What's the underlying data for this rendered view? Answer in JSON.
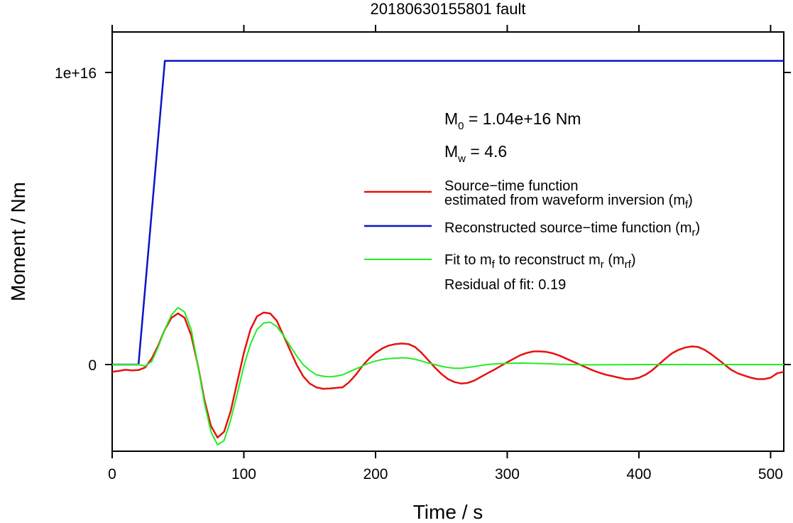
{
  "chart_data": {
    "type": "line",
    "title": "20180630155801 fault",
    "xlabel": "Time / s",
    "ylabel": "Moment / Nm",
    "xlim": [
      0,
      510
    ],
    "ylim": [
      -3000000000000000.0,
      1.2e+16
    ],
    "x_ticks": [
      0,
      100,
      200,
      300,
      400,
      500
    ],
    "x_tick_labels": [
      "0",
      "100",
      "200",
      "300",
      "400",
      "500"
    ],
    "y_ticks": [
      0,
      1e+16
    ],
    "y_tick_labels": [
      "0",
      "1e+16"
    ],
    "grid": false,
    "annotations": {
      "m0_prefix": "M",
      "m0_sub": "0",
      "m0_text": " = 1.04e+16 Nm",
      "mw_prefix": "M",
      "mw_sub": "w",
      "mw_text": " = 4.6",
      "residual": "Residual of fit: 0.19"
    },
    "legend": {
      "position": "right",
      "entries": [
        {
          "line1": "Source−time function",
          "line2": "estimated from waveform inversion (m",
          "sub": "f",
          "tail": ")",
          "color": "#e8110f"
        },
        {
          "text": "Reconstructed source−time function (m",
          "sub": "r",
          "tail": ")",
          "color": "#0a14c8"
        },
        {
          "t1": "Fit to m",
          "s1": "f",
          "t2": " to reconstruct m",
          "s2": "r",
          "t3": " (m",
          "s3": "rf",
          "t4": ")",
          "color": "#22ee22"
        }
      ]
    },
    "series": [
      {
        "key": "red",
        "color": "#e8110f",
        "points": [
          [
            0,
            -250000000000000.0
          ],
          [
            5,
            -220000000000000.0
          ],
          [
            10,
            -180000000000000.0
          ],
          [
            15,
            -200000000000000.0
          ],
          [
            20,
            -190000000000000.0
          ],
          [
            25,
            -100000000000000.0
          ],
          [
            30,
            200000000000000.0
          ],
          [
            35,
            650000000000000.0
          ],
          [
            40,
            1200000000000000.0
          ],
          [
            45,
            1600000000000000.0
          ],
          [
            50,
            1750000000000000.0
          ],
          [
            55,
            1600000000000000.0
          ],
          [
            60,
            1000000000000000.0
          ],
          [
            65,
            0
          ],
          [
            70,
            -1200000000000000.0
          ],
          [
            75,
            -2100000000000000.0
          ],
          [
            80,
            -2500000000000000.0
          ],
          [
            85,
            -2300000000000000.0
          ],
          [
            90,
            -1600000000000000.0
          ],
          [
            95,
            -600000000000000.0
          ],
          [
            100,
            400000000000000.0
          ],
          [
            105,
            1200000000000000.0
          ],
          [
            110,
            1650000000000000.0
          ],
          [
            115,
            1780000000000000.0
          ],
          [
            120,
            1750000000000000.0
          ],
          [
            125,
            1500000000000000.0
          ],
          [
            130,
            1000000000000000.0
          ],
          [
            135,
            500000000000000.0
          ],
          [
            140,
            0
          ],
          [
            145,
            -400000000000000.0
          ],
          [
            150,
            -650000000000000.0
          ],
          [
            155,
            -780000000000000.0
          ],
          [
            160,
            -830000000000000.0
          ],
          [
            165,
            -820000000000000.0
          ],
          [
            170,
            -800000000000000.0
          ],
          [
            175,
            -780000000000000.0
          ],
          [
            180,
            -600000000000000.0
          ],
          [
            185,
            -350000000000000.0
          ],
          [
            190,
            -50000000000000.0
          ],
          [
            195,
            200000000000000.0
          ],
          [
            200,
            400000000000000.0
          ],
          [
            205,
            550000000000000.0
          ],
          [
            210,
            650000000000000.0
          ],
          [
            215,
            700000000000000.0
          ],
          [
            220,
            720000000000000.0
          ],
          [
            225,
            700000000000000.0
          ],
          [
            230,
            600000000000000.0
          ],
          [
            235,
            400000000000000.0
          ],
          [
            240,
            150000000000000.0
          ],
          [
            245,
            -100000000000000.0
          ],
          [
            250,
            -320000000000000.0
          ],
          [
            255,
            -500000000000000.0
          ],
          [
            260,
            -600000000000000.0
          ],
          [
            265,
            -650000000000000.0
          ],
          [
            270,
            -630000000000000.0
          ],
          [
            275,
            -550000000000000.0
          ],
          [
            280,
            -420000000000000.0
          ],
          [
            285,
            -300000000000000.0
          ],
          [
            290,
            -180000000000000.0
          ],
          [
            295,
            -50000000000000.0
          ],
          [
            300,
            80000000000000.0
          ],
          [
            305,
            200000000000000.0
          ],
          [
            310,
            320000000000000.0
          ],
          [
            315,
            400000000000000.0
          ],
          [
            320,
            450000000000000.0
          ],
          [
            325,
            450000000000000.0
          ],
          [
            330,
            430000000000000.0
          ],
          [
            335,
            380000000000000.0
          ],
          [
            340,
            300000000000000.0
          ],
          [
            345,
            200000000000000.0
          ],
          [
            350,
            100000000000000.0
          ],
          [
            355,
            0
          ],
          [
            360,
            -100000000000000.0
          ],
          [
            365,
            -200000000000000.0
          ],
          [
            370,
            -280000000000000.0
          ],
          [
            375,
            -350000000000000.0
          ],
          [
            380,
            -400000000000000.0
          ],
          [
            385,
            -450000000000000.0
          ],
          [
            390,
            -500000000000000.0
          ],
          [
            395,
            -500000000000000.0
          ],
          [
            400,
            -450000000000000.0
          ],
          [
            405,
            -350000000000000.0
          ],
          [
            410,
            -200000000000000.0
          ],
          [
            415,
            0
          ],
          [
            420,
            200000000000000.0
          ],
          [
            425,
            380000000000000.0
          ],
          [
            430,
            500000000000000.0
          ],
          [
            435,
            580000000000000.0
          ],
          [
            440,
            620000000000000.0
          ],
          [
            445,
            600000000000000.0
          ],
          [
            450,
            500000000000000.0
          ],
          [
            455,
            350000000000000.0
          ],
          [
            460,
            180000000000000.0
          ],
          [
            465,
            0
          ],
          [
            470,
            -180000000000000.0
          ],
          [
            475,
            -300000000000000.0
          ],
          [
            480,
            -380000000000000.0
          ],
          [
            485,
            -450000000000000.0
          ],
          [
            490,
            -500000000000000.0
          ],
          [
            495,
            -500000000000000.0
          ],
          [
            500,
            -450000000000000.0
          ],
          [
            505,
            -300000000000000.0
          ],
          [
            510,
            -250000000000000.0
          ]
        ]
      },
      {
        "key": "blue",
        "color": "#0a14c8",
        "points": [
          [
            0,
            0
          ],
          [
            20,
            0
          ],
          [
            40,
            1.04e+16
          ],
          [
            510,
            1.04e+16
          ]
        ]
      },
      {
        "key": "green",
        "color": "#22ee22",
        "points": [
          [
            0,
            0
          ],
          [
            20,
            0
          ],
          [
            25,
            -50000000000000.0
          ],
          [
            30,
            100000000000000.0
          ],
          [
            35,
            600000000000000.0
          ],
          [
            40,
            1200000000000000.0
          ],
          [
            45,
            1700000000000000.0
          ],
          [
            50,
            1950000000000000.0
          ],
          [
            55,
            1800000000000000.0
          ],
          [
            60,
            1200000000000000.0
          ],
          [
            65,
            0
          ],
          [
            70,
            -1300000000000000.0
          ],
          [
            75,
            -2300000000000000.0
          ],
          [
            80,
            -2750000000000000.0
          ],
          [
            85,
            -2600000000000000.0
          ],
          [
            90,
            -1900000000000000.0
          ],
          [
            95,
            -1000000000000000.0
          ],
          [
            100,
            -50000000000000.0
          ],
          [
            105,
            700000000000000.0
          ],
          [
            110,
            1200000000000000.0
          ],
          [
            115,
            1420000000000000.0
          ],
          [
            120,
            1450000000000000.0
          ],
          [
            125,
            1300000000000000.0
          ],
          [
            130,
            1000000000000000.0
          ],
          [
            135,
            650000000000000.0
          ],
          [
            140,
            300000000000000.0
          ],
          [
            145,
            0
          ],
          [
            150,
            -200000000000000.0
          ],
          [
            155,
            -350000000000000.0
          ],
          [
            160,
            -400000000000000.0
          ],
          [
            165,
            -420000000000000.0
          ],
          [
            170,
            -400000000000000.0
          ],
          [
            175,
            -350000000000000.0
          ],
          [
            180,
            -250000000000000.0
          ],
          [
            185,
            -150000000000000.0
          ],
          [
            190,
            -50000000000000.0
          ],
          [
            195,
            50000000000000.0
          ],
          [
            200,
            120000000000000.0
          ],
          [
            205,
            170000000000000.0
          ],
          [
            210,
            200000000000000.0
          ],
          [
            215,
            220000000000000.0
          ],
          [
            220,
            230000000000000.0
          ],
          [
            225,
            220000000000000.0
          ],
          [
            230,
            180000000000000.0
          ],
          [
            235,
            120000000000000.0
          ],
          [
            240,
            50000000000000.0
          ],
          [
            245,
            0
          ],
          [
            250,
            -60000000000000.0
          ],
          [
            255,
            -100000000000000.0
          ],
          [
            260,
            -130000000000000.0
          ],
          [
            265,
            -130000000000000.0
          ],
          [
            270,
            -100000000000000.0
          ],
          [
            275,
            -70000000000000.0
          ],
          [
            280,
            -30000000000000.0
          ],
          [
            285,
            0
          ],
          [
            290,
            20000000000000.0
          ],
          [
            300,
            40000000000000.0
          ],
          [
            310,
            50000000000000.0
          ],
          [
            320,
            40000000000000.0
          ],
          [
            330,
            30000000000000.0
          ],
          [
            340,
            10000000000000.0
          ],
          [
            350,
            0
          ],
          [
            360,
            -10000000000000.0
          ],
          [
            370,
            -10000000000000.0
          ],
          [
            400,
            0
          ],
          [
            510,
            0
          ]
        ]
      }
    ]
  }
}
